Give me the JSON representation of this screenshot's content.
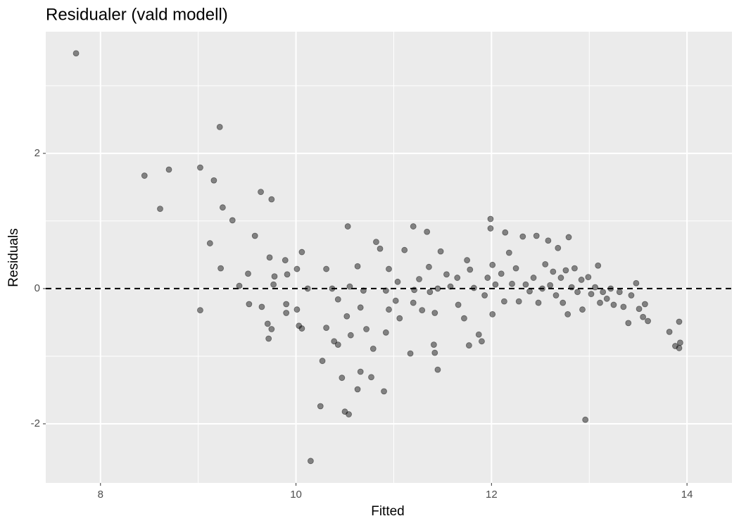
{
  "chart_data": {
    "type": "scatter",
    "title": "Residualer (vald modell)",
    "x_label": "Fitted",
    "y_label": "Residuals",
    "xlim": [
      7.44,
      14.46
    ],
    "ylim": [
      -2.875,
      3.8
    ],
    "xticks": [
      8,
      10,
      12,
      14
    ],
    "yticks": [
      -2,
      0,
      2
    ],
    "grid": true,
    "minor_grid": true,
    "hline": 0,
    "color": "#000000",
    "opacity": 0.45,
    "x": [
      7.75,
      9.22,
      8.45,
      8.7,
      8.61,
      9.02,
      9.16,
      9.25,
      9.35,
      9.12,
      9.23,
      9.02,
      9.51,
      9.58,
      9.64,
      9.75,
      9.73,
      9.42,
      9.52,
      9.65,
      9.71,
      9.72,
      9.75,
      9.77,
      9.78,
      9.89,
      9.91,
      9.9,
      9.9,
      10.01,
      10.06,
      10.01,
      10.03,
      10.06,
      10.12,
      10.15,
      10.25,
      10.27,
      10.31,
      10.31,
      10.37,
      10.39,
      10.43,
      10.43,
      10.47,
      10.5,
      10.54,
      10.53,
      10.55,
      10.52,
      10.56,
      10.63,
      10.66,
      10.63,
      10.66,
      10.69,
      10.72,
      10.77,
      10.79,
      10.82,
      10.86,
      10.9,
      10.92,
      10.92,
      10.95,
      10.95,
      11.02,
      11.04,
      11.06,
      11.11,
      11.17,
      11.2,
      11.2,
      11.21,
      11.26,
      11.29,
      11.34,
      11.36,
      11.37,
      11.41,
      11.42,
      11.42,
      11.45,
      11.45,
      11.48,
      11.54,
      11.58,
      11.65,
      11.66,
      11.72,
      11.75,
      11.77,
      11.78,
      11.82,
      11.87,
      11.9,
      11.93,
      11.96,
      11.99,
      11.99,
      12.01,
      12.01,
      12.04,
      12.1,
      12.13,
      12.14,
      12.18,
      12.21,
      12.25,
      12.28,
      12.32,
      12.35,
      12.39,
      12.43,
      12.46,
      12.48,
      12.52,
      12.55,
      12.58,
      12.6,
      12.63,
      12.66,
      12.68,
      12.71,
      12.73,
      12.76,
      12.78,
      12.79,
      12.82,
      12.85,
      12.88,
      12.92,
      12.93,
      12.96,
      12.99,
      13.02,
      13.06,
      13.09,
      13.11,
      13.14,
      13.18,
      13.22,
      13.25,
      13.31,
      13.35,
      13.4,
      13.43,
      13.48,
      13.51,
      13.55,
      13.57,
      13.6,
      13.82,
      13.88,
      13.92,
      13.93,
      13.92
    ],
    "y": [
      3.48,
      2.39,
      1.67,
      1.76,
      1.18,
      1.79,
      1.6,
      1.2,
      1.01,
      0.67,
      0.3,
      -0.32,
      0.22,
      0.78,
      1.43,
      1.32,
      0.46,
      0.04,
      -0.23,
      -0.27,
      -0.52,
      -0.74,
      -0.6,
      0.06,
      0.18,
      0.42,
      0.21,
      -0.23,
      -0.36,
      0.29,
      0.54,
      -0.31,
      -0.55,
      -0.59,
      0.0,
      -2.55,
      -1.74,
      -1.07,
      0.29,
      -0.58,
      0.0,
      -0.78,
      -0.83,
      -0.16,
      -1.32,
      -1.82,
      -1.86,
      0.92,
      0.03,
      -0.41,
      -0.69,
      0.33,
      -1.23,
      -1.49,
      -0.28,
      -0.03,
      -0.6,
      -1.31,
      -0.89,
      0.69,
      0.59,
      -1.52,
      -0.03,
      -0.65,
      0.29,
      -0.31,
      -0.18,
      0.1,
      -0.44,
      0.57,
      -0.96,
      0.92,
      -0.21,
      -0.02,
      0.14,
      -0.32,
      0.84,
      0.32,
      -0.05,
      -0.83,
      -0.95,
      -0.36,
      -1.2,
      0.0,
      0.55,
      0.21,
      0.03,
      0.16,
      -0.24,
      -0.44,
      0.42,
      -0.84,
      0.28,
      0.01,
      -0.68,
      -0.78,
      -0.1,
      0.16,
      1.03,
      0.89,
      -0.38,
      0.35,
      0.06,
      0.22,
      -0.19,
      0.83,
      0.53,
      0.07,
      0.3,
      -0.19,
      0.77,
      0.06,
      -0.04,
      0.16,
      0.78,
      -0.21,
      0.0,
      0.36,
      0.71,
      0.05,
      0.25,
      -0.1,
      0.6,
      0.16,
      -0.21,
      0.27,
      -0.38,
      0.76,
      0.02,
      0.3,
      -0.05,
      0.13,
      -0.31,
      -1.94,
      0.17,
      -0.08,
      0.02,
      0.34,
      -0.21,
      -0.05,
      -0.15,
      0.0,
      -0.24,
      -0.05,
      -0.27,
      -0.51,
      -0.1,
      0.08,
      -0.3,
      -0.42,
      -0.23,
      -0.48,
      -0.64,
      -0.85,
      -0.49,
      -0.8,
      -0.88
    ]
  }
}
